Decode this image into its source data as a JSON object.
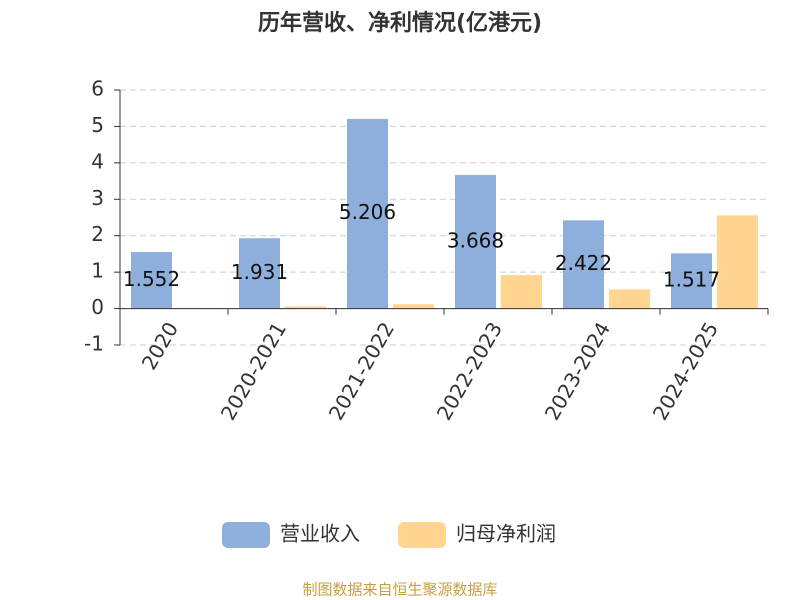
{
  "chart_data": {
    "type": "bar",
    "title": "历年营收、净利情况(亿港元)",
    "categories": [
      "2020",
      "2020-2021",
      "2021-2022",
      "2022-2023",
      "2023-2024",
      "2024-2025"
    ],
    "series": [
      {
        "name": "营业收入",
        "color": "#8eaedb",
        "values": [
          1.552,
          1.931,
          5.206,
          3.668,
          2.422,
          1.517
        ],
        "show_labels": true
      },
      {
        "name": "归母净利润",
        "color": "#ffd591",
        "values": [
          0.02,
          0.06,
          0.12,
          0.92,
          0.53,
          2.56
        ],
        "show_labels": false
      }
    ],
    "ylim": [
      -1,
      6
    ],
    "yticks": [
      -1,
      0,
      1,
      2,
      3,
      4,
      5,
      6
    ],
    "grid": true,
    "source": "制图数据来自恒生聚源数据库"
  }
}
